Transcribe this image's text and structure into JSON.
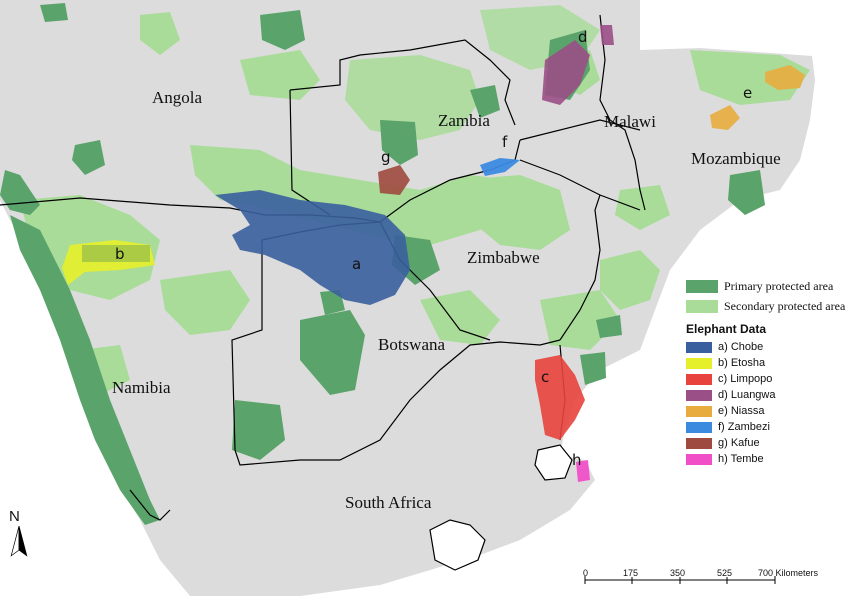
{
  "map": {
    "countries": [
      {
        "key": "angola",
        "label": "Angola"
      },
      {
        "key": "zambia",
        "label": "Zambia"
      },
      {
        "key": "malawi",
        "label": "Malawi"
      },
      {
        "key": "mozambique",
        "label": "Mozambique"
      },
      {
        "key": "zimbabwe",
        "label": "Zimbabwe"
      },
      {
        "key": "botswana",
        "label": "Botswana"
      },
      {
        "key": "namibia",
        "label": "Namibia"
      },
      {
        "key": "south_africa",
        "label": "South Africa"
      }
    ],
    "site_letters": [
      "a",
      "b",
      "c",
      "d",
      "e",
      "f",
      "g",
      "h"
    ],
    "colors": {
      "land": "#dcdcdc",
      "primary": "#5aa36a",
      "secondary": "#a8dc98",
      "border": "#000000",
      "chobe": "#3a5f9e",
      "etosha": "#e6f02a",
      "limpopo": "#e8433c",
      "luangwa": "#9a4f86",
      "niassa": "#e8ac3e",
      "zambezi": "#3b8ae0",
      "kafue": "#9e4a3e",
      "tembe": "#f04fc8"
    }
  },
  "legend": {
    "protected": [
      {
        "key": "primary",
        "label": "Primary protected area",
        "color": "#5aa36a"
      },
      {
        "key": "secondary",
        "label": "Secondary protected area",
        "color": "#a8dc98"
      }
    ],
    "elephant_title": "Elephant Data",
    "elephants": [
      {
        "key": "chobe",
        "label": "a) Chobe",
        "color": "#3a5f9e"
      },
      {
        "key": "etosha",
        "label": "b) Etosha",
        "color": "#e6f02a"
      },
      {
        "key": "limpopo",
        "label": "c) Limpopo",
        "color": "#e8433c"
      },
      {
        "key": "luangwa",
        "label": "d) Luangwa",
        "color": "#9a4f86"
      },
      {
        "key": "niassa",
        "label": "e) Niassa",
        "color": "#e8ac3e"
      },
      {
        "key": "zambezi",
        "label": "f) Zambezi",
        "color": "#3b8ae0"
      },
      {
        "key": "kafue",
        "label": "g) Kafue",
        "color": "#9e4a3e"
      },
      {
        "key": "tembe",
        "label": "h) Tembe",
        "color": "#f04fc8"
      }
    ]
  },
  "north_arrow": {
    "label": "N"
  },
  "scale_bar": {
    "ticks": [
      "0",
      "175",
      "350",
      "525",
      "700 Kilometers"
    ]
  }
}
